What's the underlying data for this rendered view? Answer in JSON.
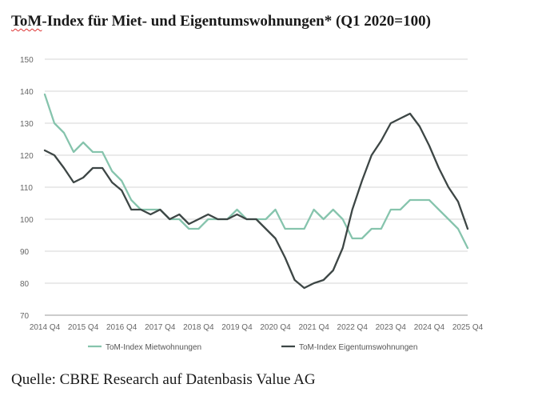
{
  "title_prefix": "ToM",
  "title_rest": "-Index für Miet- und Eigentumswohnungen* (Q1 2020=100)",
  "source": "Quelle: CBRE Research auf Datenbasis Value AG",
  "chart_data": {
    "type": "line",
    "title": "ToM-Index für Miet- und Eigentumswohnungen* (Q1 2020=100)",
    "x_tick_labels": [
      "2014 Q4",
      "2015 Q4",
      "2016 Q4",
      "2017 Q4",
      "2018 Q4",
      "2019 Q4",
      "2020 Q4",
      "2021 Q4",
      "2022 Q4",
      "2023 Q4",
      "2024 Q4",
      "2025 Q4"
    ],
    "ylim": [
      70,
      150
    ],
    "y_ticks": [
      70,
      80,
      90,
      100,
      110,
      120,
      130,
      140,
      150
    ],
    "grid": true,
    "legend_position": "bottom",
    "x": [
      "2014 Q4",
      "2015 Q1",
      "2015 Q2",
      "2015 Q3",
      "2015 Q4",
      "2016 Q1",
      "2016 Q2",
      "2016 Q3",
      "2016 Q4",
      "2017 Q1",
      "2017 Q2",
      "2017 Q3",
      "2017 Q4",
      "2018 Q1",
      "2018 Q2",
      "2018 Q3",
      "2018 Q4",
      "2019 Q1",
      "2019 Q2",
      "2019 Q3",
      "2019 Q4",
      "2020 Q1",
      "2020 Q2",
      "2020 Q3",
      "2020 Q4",
      "2021 Q1",
      "2021 Q2",
      "2021 Q3",
      "2021 Q4",
      "2022 Q1",
      "2022 Q2",
      "2022 Q3",
      "2022 Q4",
      "2023 Q1",
      "2023 Q2",
      "2023 Q3",
      "2023 Q4",
      "2024 Q1",
      "2024 Q2",
      "2024 Q3",
      "2024 Q4",
      "2025 Q1",
      "2025 Q2",
      "2025 Q3",
      "2025 Q4"
    ],
    "series": [
      {
        "name": "ToM-Index Mietwohnungen",
        "color": "#86c4ad",
        "values": [
          139,
          130,
          127,
          121,
          124,
          121,
          121,
          115,
          112,
          106,
          103,
          103,
          103,
          100,
          100,
          97,
          97,
          100,
          100,
          100,
          103,
          100,
          100,
          100,
          103,
          97,
          97,
          97,
          103,
          100,
          103,
          100,
          94,
          94,
          97,
          97,
          103,
          103,
          106,
          106,
          106,
          103,
          100,
          97,
          91
        ]
      },
      {
        "name": "ToM-Index Eigentumswohnungen",
        "color": "#3d4645",
        "values": [
          121.5,
          120,
          116,
          111.5,
          113,
          116,
          116,
          111.5,
          109,
          103,
          103,
          101.5,
          103,
          100,
          101.5,
          98.5,
          100,
          101.5,
          100,
          100,
          101.5,
          100,
          100,
          97,
          94,
          88,
          81,
          78.5,
          80,
          81,
          84,
          91,
          103,
          112,
          120,
          124.5,
          130,
          131.5,
          133,
          129,
          123,
          116,
          110,
          105.5,
          97
        ]
      }
    ]
  }
}
